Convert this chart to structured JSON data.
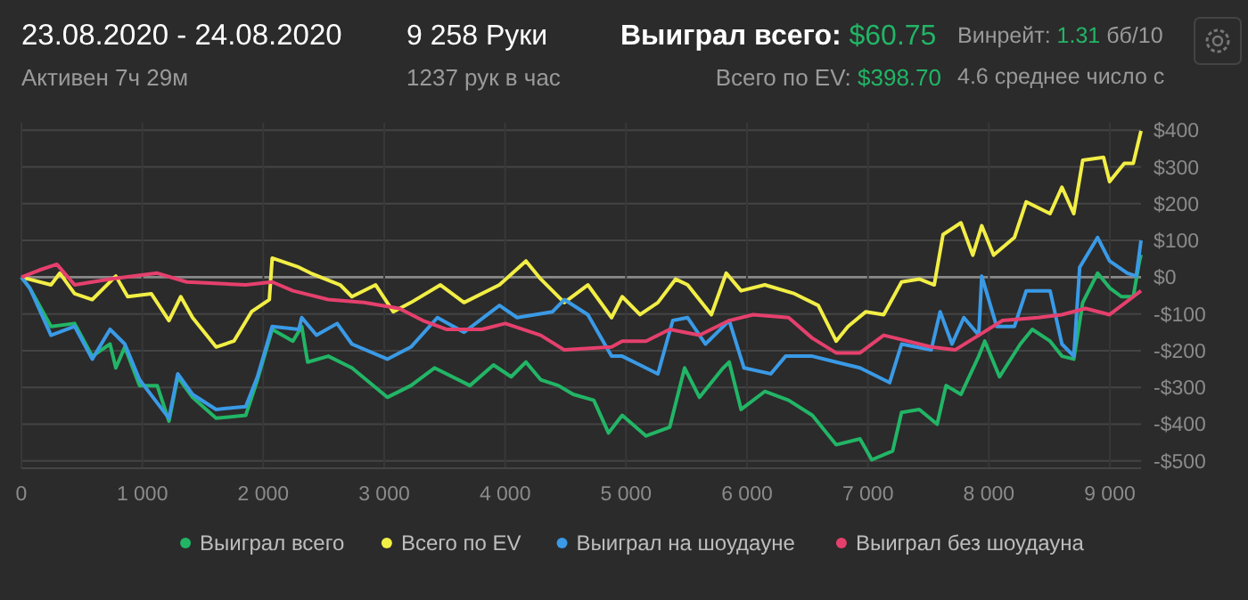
{
  "chart_data": {
    "type": "line",
    "title": "23.08.2020 - 24.08.2020",
    "annotations": [
      "Активен 7ч 29м",
      "9 258 Руки",
      "1237 рук в час",
      "Выиграл всего:",
      "$60.75",
      "Всего по EV:",
      "$398.70",
      "Винрейт:",
      "1.31",
      "бб/10",
      "4.6 среднее число с"
    ],
    "xlim": [
      0,
      9258
    ],
    "ylim": [
      -520,
      420
    ],
    "xticks": [
      0,
      {
        "value": 1000,
        "label": "1 000"
      },
      {
        "value": 2000,
        "label": "2 000"
      },
      {
        "value": 3000,
        "label": "3 000"
      },
      {
        "value": 4000,
        "label": "4 000"
      },
      {
        "value": 5000,
        "label": "5 000"
      },
      {
        "value": 6000,
        "label": "6 000"
      },
      {
        "value": 7000,
        "label": "7 000"
      },
      {
        "value": 8000,
        "label": "8 000"
      },
      {
        "value": 9000,
        "label": "9 000"
      }
    ],
    "yticks": [
      {
        "value": 400,
        "label": "$400"
      },
      {
        "value": 300,
        "label": "$300"
      },
      {
        "value": 200,
        "label": "$200"
      },
      {
        "value": 100,
        "label": "$100"
      },
      {
        "value": 0,
        "label": "$0"
      },
      {
        "value": -100,
        "label": "-$100"
      },
      {
        "value": -200,
        "label": "-$200"
      },
      {
        "value": -300,
        "label": "-$300"
      },
      {
        "value": -400,
        "label": "-$400"
      },
      {
        "value": -500,
        "label": "-$500"
      }
    ],
    "grid": true,
    "legend": "bottom",
    "marker": "none",
    "line_style": "solid",
    "series": [
      {
        "name": "Выиграл всего",
        "color": "#22b566",
        "x": [
          0,
          70,
          245,
          440,
          586,
          733,
          781,
          855,
          977,
          1123,
          1220,
          1293,
          1415,
          1610,
          1855,
          1952,
          2074,
          2245,
          2318,
          2367,
          2538,
          2733,
          3026,
          3221,
          3416,
          3709,
          3904,
          4050,
          4172,
          4294,
          4440,
          4563,
          4733,
          4855,
          4968,
          5165,
          5361,
          5484,
          5607,
          5803,
          5853,
          5951,
          6147,
          6344,
          6540,
          6737,
          6934,
          7032,
          7204,
          7278,
          7425,
          7572,
          7646,
          7769,
          7916,
          7966,
          8088,
          8260,
          8359,
          8506,
          8604,
          8702,
          8776,
          8899,
          8998,
          9096,
          9194,
          9243,
          9258
        ],
        "values": [
          0,
          -30,
          -134,
          -126,
          -215,
          -182,
          -247,
          -190,
          -295,
          -295,
          -392,
          -271,
          -327,
          -384,
          -376,
          -279,
          -142,
          -174,
          -134,
          -231,
          -215,
          -247,
          -327,
          -295,
          -247,
          -295,
          -239,
          -271,
          -231,
          -279,
          -295,
          -319,
          -335,
          -424,
          -376,
          -432,
          -408,
          -247,
          -327,
          -247,
          -231,
          -360,
          -311,
          -335,
          -376,
          -456,
          -440,
          -497,
          -473,
          -368,
          -360,
          -400,
          -295,
          -319,
          -215,
          -174,
          -271,
          -182,
          -142,
          -174,
          -215,
          -223,
          -69,
          11,
          -29,
          -53,
          -53,
          40,
          61
        ]
      },
      {
        "name": "Всего по EV",
        "color": "#f2ee45",
        "x": [
          0,
          245,
          318,
          440,
          586,
          781,
          879,
          1074,
          1220,
          1318,
          1415,
          1610,
          1757,
          1903,
          2050,
          2074,
          2294,
          2391,
          2636,
          2733,
          2929,
          3075,
          3221,
          3465,
          3660,
          3953,
          4172,
          4294,
          4489,
          4684,
          4880,
          4968,
          5115,
          5263,
          5410,
          5509,
          5705,
          5828,
          5951,
          6147,
          6393,
          6589,
          6737,
          6835,
          6983,
          7130,
          7278,
          7425,
          7548,
          7621,
          7769,
          7867,
          7941,
          8039,
          8211,
          8309,
          8506,
          8604,
          8702,
          8776,
          8948,
          8998,
          9120,
          9194,
          9258
        ],
        "values": [
          0,
          -21,
          11,
          -45,
          -61,
          3,
          -53,
          -45,
          -118,
          -53,
          -110,
          -190,
          -174,
          -94,
          -61,
          52,
          27,
          11,
          -21,
          -53,
          -21,
          -94,
          -69,
          -21,
          -69,
          -21,
          44,
          -5,
          -69,
          -21,
          -110,
          -53,
          -102,
          -69,
          -5,
          -21,
          -102,
          11,
          -37,
          -21,
          -45,
          -77,
          -174,
          -134,
          -94,
          -102,
          -13,
          -5,
          -21,
          116,
          148,
          60,
          140,
          60,
          108,
          205,
          173,
          245,
          173,
          318,
          326,
          260,
          310,
          310,
          398
        ]
      },
      {
        "name": "Выиграл на шоудауне",
        "color": "#3a9ae6",
        "x": [
          0,
          70,
          245,
          440,
          586,
          733,
          855,
          977,
          1220,
          1293,
          1415,
          1610,
          1855,
          1952,
          2074,
          2294,
          2318,
          2440,
          2611,
          2733,
          3026,
          3221,
          3440,
          3660,
          3953,
          4099,
          4392,
          4489,
          4684,
          4880,
          4968,
          5115,
          5263,
          5386,
          5509,
          5656,
          5853,
          5975,
          6196,
          6319,
          6540,
          6737,
          6934,
          7179,
          7278,
          7523,
          7597,
          7695,
          7793,
          7916,
          7941,
          8064,
          8211,
          8309,
          8506,
          8604,
          8702,
          8751,
          8899,
          8998,
          9145,
          9219,
          9258
        ],
        "values": [
          0,
          -30,
          -158,
          -134,
          -223,
          -142,
          -182,
          -279,
          -384,
          -263,
          -319,
          -360,
          -352,
          -271,
          -134,
          -142,
          -110,
          -158,
          -126,
          -182,
          -223,
          -190,
          -110,
          -150,
          -77,
          -110,
          -94,
          -61,
          -102,
          -215,
          -215,
          -239,
          -263,
          -118,
          -110,
          -182,
          -118,
          -247,
          -263,
          -215,
          -215,
          -231,
          -247,
          -287,
          -182,
          -198,
          -94,
          -182,
          -110,
          -158,
          3,
          -134,
          -134,
          -37,
          -37,
          -182,
          -215,
          27,
          108,
          44,
          11,
          3,
          100
        ]
      },
      {
        "name": "Выиграл без шоудауна",
        "color": "#e5406d",
        "x": [
          0,
          146,
          293,
          440,
          733,
          1123,
          1367,
          1855,
          2074,
          2245,
          2538,
          2831,
          3124,
          3319,
          3514,
          3807,
          4001,
          4294,
          4489,
          4880,
          4968,
          5165,
          5361,
          5607,
          5853,
          6049,
          6344,
          6540,
          6737,
          6934,
          7130,
          7327,
          7523,
          7720,
          7916,
          8113,
          8408,
          8604,
          8800,
          8998,
          9194,
          9258
        ],
        "values": [
          0,
          19,
          35,
          -21,
          -5,
          11,
          -13,
          -21,
          -13,
          -37,
          -61,
          -69,
          -85,
          -118,
          -142,
          -142,
          -126,
          -158,
          -198,
          -190,
          -174,
          -174,
          -142,
          -158,
          -118,
          -102,
          -110,
          -166,
          -206,
          -206,
          -158,
          -174,
          -190,
          -198,
          -158,
          -118,
          -110,
          -102,
          -85,
          -102,
          -53,
          -37
        ]
      }
    ]
  }
}
